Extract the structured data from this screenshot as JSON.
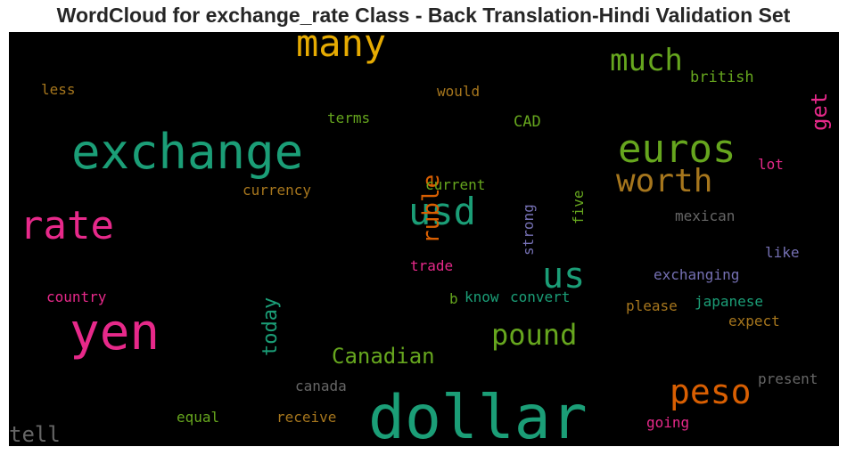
{
  "chart_data": {
    "type": "wordcloud",
    "title": "WordCloud for exchange_rate Class - Back Translation-Hindi Validation Set",
    "words": [
      {
        "text": "dollar",
        "color": "#1b9e77"
      },
      {
        "text": "exchange",
        "color": "#1b9e77"
      },
      {
        "text": "yen",
        "color": "#e7298a"
      },
      {
        "text": "rate",
        "color": "#e7298a"
      },
      {
        "text": "many",
        "color": "#e6ab02"
      },
      {
        "text": "euros",
        "color": "#66a61e"
      },
      {
        "text": "usd",
        "color": "#1b9e77"
      },
      {
        "text": "worth",
        "color": "#a6761d"
      },
      {
        "text": "peso",
        "color": "#d95f02"
      },
      {
        "text": "much",
        "color": "#66a61e"
      },
      {
        "text": "us",
        "color": "#1b9e77"
      },
      {
        "text": "pound",
        "color": "#66a61e"
      },
      {
        "text": "ruble",
        "color": "#d95f02"
      },
      {
        "text": "Canadian",
        "color": "#66a61e"
      },
      {
        "text": "today",
        "color": "#1b9e77"
      },
      {
        "text": "get",
        "color": "#e7298a"
      },
      {
        "text": "tell",
        "color": "#666666"
      },
      {
        "text": "british",
        "color": "#66a61e"
      },
      {
        "text": "less",
        "color": "#a6761d"
      },
      {
        "text": "would",
        "color": "#a6761d"
      },
      {
        "text": "terms",
        "color": "#66a61e"
      },
      {
        "text": "CAD",
        "color": "#66a61e"
      },
      {
        "text": "lot",
        "color": "#e7298a"
      },
      {
        "text": "strong",
        "color": "#7570b3"
      },
      {
        "text": "five",
        "color": "#66a61e"
      },
      {
        "text": "current",
        "color": "#66a61e"
      },
      {
        "text": "currency",
        "color": "#a6761d"
      },
      {
        "text": "mexican",
        "color": "#666666"
      },
      {
        "text": "like",
        "color": "#7570b3"
      },
      {
        "text": "trade",
        "color": "#e7298a"
      },
      {
        "text": "exchanging",
        "color": "#7570b3"
      },
      {
        "text": "country",
        "color": "#e7298a"
      },
      {
        "text": "b",
        "color": "#66a61e"
      },
      {
        "text": "know",
        "color": "#1b9e77"
      },
      {
        "text": "convert",
        "color": "#1b9e77"
      },
      {
        "text": "japanese",
        "color": "#1b9e77"
      },
      {
        "text": "please",
        "color": "#a6761d"
      },
      {
        "text": "expect",
        "color": "#a6761d"
      },
      {
        "text": "canada",
        "color": "#666666"
      },
      {
        "text": "present",
        "color": "#666666"
      },
      {
        "text": "equal",
        "color": "#66a61e"
      },
      {
        "text": "receive",
        "color": "#a6761d"
      },
      {
        "text": "going",
        "color": "#e7298a"
      }
    ]
  }
}
